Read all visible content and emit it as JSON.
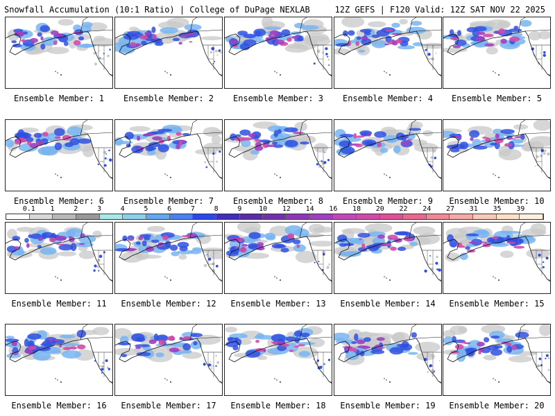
{
  "header": {
    "title_left": "Snowfall Accumulation (10:1 Ratio) | College of DuPage NEXLAB",
    "title_right": "12Z GEFS | F120 Valid: 12Z SAT NOV 22 2025"
  },
  "colorbar": {
    "labels": [
      "0.1",
      "1",
      "2",
      "3",
      "4",
      "5",
      "6",
      "7",
      "8",
      "9",
      "10",
      "12",
      "14",
      "16",
      "18",
      "20",
      "22",
      "24",
      "27",
      "31",
      "35",
      "39"
    ],
    "colors": [
      "#ffffff",
      "#d8d8d8",
      "#b8b8b8",
      "#989898",
      "#a8e8e8",
      "#8cd0ec",
      "#64a8f0",
      "#4a80f0",
      "#2c48e8",
      "#4030b8",
      "#5a2ca8",
      "#7430a8",
      "#8c38b4",
      "#a040c0",
      "#c048b8",
      "#d04aa8",
      "#e05098",
      "#e86890",
      "#f08898",
      "#f4a8a8",
      "#f8c8b8",
      "#fce0c8",
      "#fff0e0"
    ]
  },
  "panels": [
    {
      "label": "Ensemble Member: 1"
    },
    {
      "label": "Ensemble Member: 2"
    },
    {
      "label": "Ensemble Member: 3"
    },
    {
      "label": "Ensemble Member: 4"
    },
    {
      "label": "Ensemble Member: 5"
    },
    {
      "label": "Ensemble Member: 6"
    },
    {
      "label": "Ensemble Member: 7"
    },
    {
      "label": "Ensemble Member: 8"
    },
    {
      "label": "Ensemble Member: 9"
    },
    {
      "label": "Ensemble Member: 10"
    },
    {
      "label": "Ensemble Member: 11"
    },
    {
      "label": "Ensemble Member: 12"
    },
    {
      "label": "Ensemble Member: 13"
    },
    {
      "label": "Ensemble Member: 14"
    },
    {
      "label": "Ensemble Member: 15"
    },
    {
      "label": "Ensemble Member: 16"
    },
    {
      "label": "Ensemble Member: 17"
    },
    {
      "label": "Ensemble Member: 18"
    },
    {
      "label": "Ensemble Member: 19"
    },
    {
      "label": "Ensemble Member: 20"
    }
  ]
}
